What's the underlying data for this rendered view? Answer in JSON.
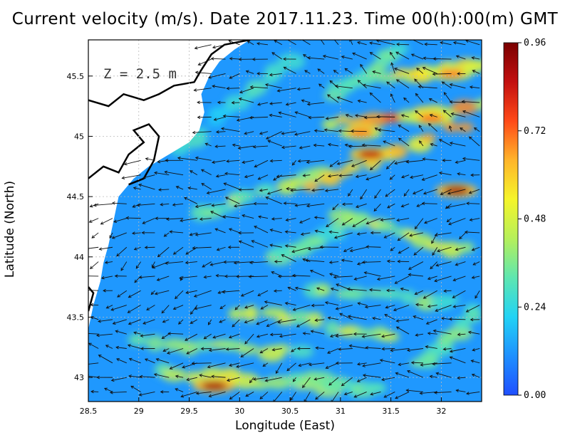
{
  "chart_data": {
    "type": "heatmap",
    "title": "Current velocity (m/s). Date 2017.11.23. Time 00(h):00(m) GMT",
    "xlabel": "Longitude (East)",
    "ylabel": "Latitude (North)",
    "xlim": [
      28.5,
      32.4
    ],
    "ylim": [
      42.8,
      45.8
    ],
    "x_ticks": [
      "28.5",
      "29",
      "29.5",
      "30",
      "30.5",
      "31",
      "31.5",
      "32"
    ],
    "y_ticks": [
      "43",
      "43.5",
      "44",
      "44.5",
      "45",
      "45.5"
    ],
    "x_tick_values": [
      28.5,
      29,
      29.5,
      30,
      30.5,
      31,
      31.5,
      32
    ],
    "y_tick_values": [
      43,
      43.5,
      44,
      44.5,
      45,
      45.5
    ],
    "annotation": "Z = 2.5 m",
    "grid": true,
    "colorbar": {
      "min": 0.0,
      "max": 0.96,
      "ticks": [
        "0.00",
        "0.24",
        "0.48",
        "0.72",
        "0.96"
      ],
      "colors": [
        "#1f4fff",
        "#1e90ff",
        "#22d3f5",
        "#5ee6b0",
        "#b6f05a",
        "#f5f52a",
        "#ffb52a",
        "#ff4a18",
        "#c31010",
        "#7a0000"
      ]
    },
    "high_speed_zones": [
      {
        "lon": 29.75,
        "lat": 42.93,
        "speed": 0.9
      },
      {
        "lon": 31.3,
        "lat": 44.85,
        "speed": 0.86
      },
      {
        "lon": 32.15,
        "lat": 44.55,
        "speed": 0.9
      },
      {
        "lon": 31.2,
        "lat": 45.03,
        "speed": 0.7
      },
      {
        "lon": 31.9,
        "lat": 45.15,
        "speed": 0.72
      },
      {
        "lon": 32.1,
        "lat": 45.52,
        "speed": 0.7
      }
    ]
  }
}
